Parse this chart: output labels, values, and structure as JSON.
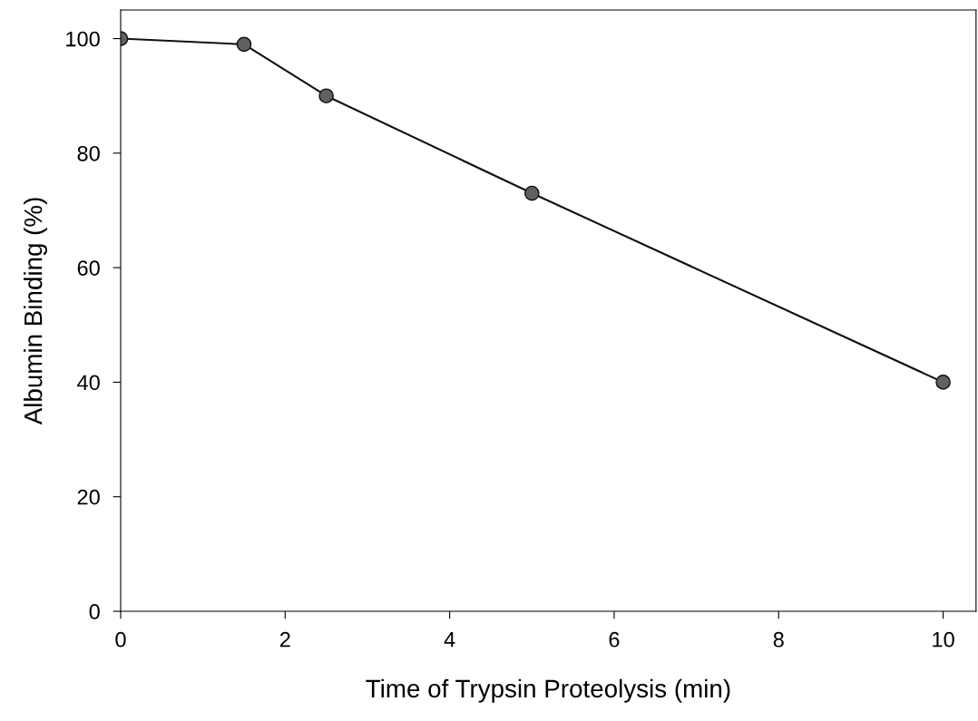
{
  "chart_data": {
    "type": "line",
    "xlabel": "Time of Trypsin Proteolysis (min)",
    "ylabel": "Albumin Binding (%)",
    "x": [
      0,
      1.5,
      2.5,
      5,
      10
    ],
    "series": [
      {
        "color": "#111111",
        "values": [
          100,
          99,
          90,
          73,
          40
        ]
      }
    ],
    "xlim": [
      0,
      10.4
    ],
    "xticks": [
      0,
      2,
      4,
      6,
      8,
      10
    ],
    "ylim": [
      0,
      105
    ],
    "yticks": [
      0,
      20,
      40,
      60,
      80,
      100
    ],
    "marker": "circle",
    "line_style": "solid",
    "grid": false
  }
}
